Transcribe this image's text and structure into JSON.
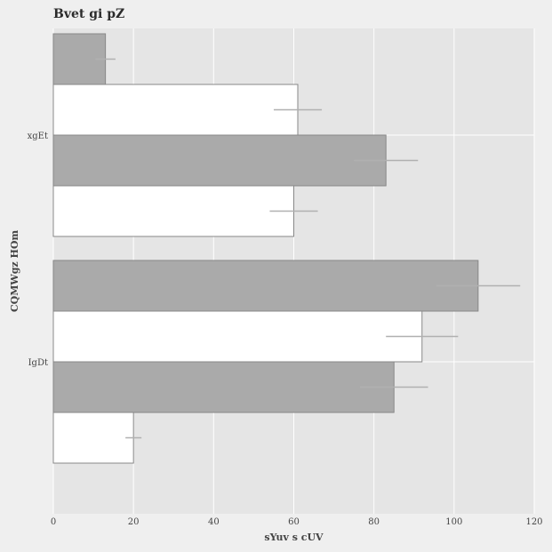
{
  "chart_data": {
    "type": "bar",
    "orientation": "horizontal",
    "title": "Bvet gi pZ",
    "xlabel": "sYuv s cUV",
    "ylabel": "CQMWgz HOm",
    "xlim": [
      0,
      120
    ],
    "xticks": [
      0,
      20,
      40,
      60,
      80,
      100,
      120
    ],
    "grid": true,
    "categories": [
      "xgEt",
      "IgDt"
    ],
    "bars": [
      {
        "category": "xgEt",
        "value": 13,
        "error": 2.5,
        "color": "#aaaaaa"
      },
      {
        "category": "xgEt",
        "value": 61,
        "error": 6,
        "color": "#ffffff"
      },
      {
        "category": "xgEt",
        "value": 83,
        "error": 8,
        "color": "#aaaaaa"
      },
      {
        "category": "xgEt",
        "value": 60,
        "error": 6,
        "color": "#ffffff"
      },
      {
        "category": "IgDt",
        "value": 106,
        "error": 10.5,
        "color": "#aaaaaa"
      },
      {
        "category": "IgDt",
        "value": 92,
        "error": 9,
        "color": "#ffffff"
      },
      {
        "category": "IgDt",
        "value": 85,
        "error": 8.5,
        "color": "#aaaaaa"
      },
      {
        "category": "IgDt",
        "value": 20,
        "error": 2,
        "color": "#ffffff"
      }
    ],
    "colors": {
      "plot_background": "#e5e5e5",
      "page_background": "#efefef",
      "grid": "#ffffff",
      "bar_edge": "#888888",
      "error_bar": "#b0b0b0"
    }
  }
}
